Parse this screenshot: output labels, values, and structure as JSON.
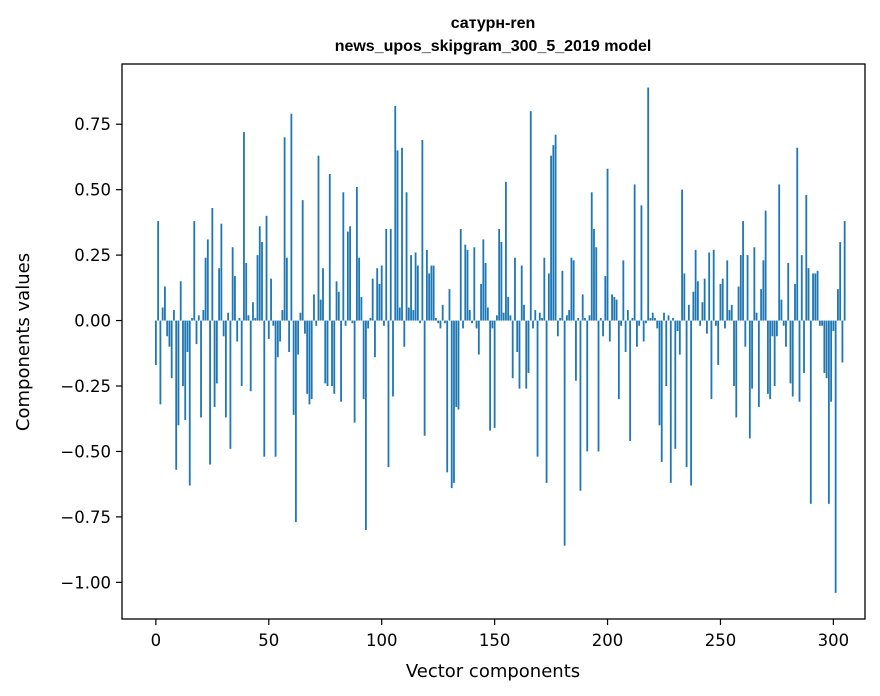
{
  "chart_data": {
    "type": "bar",
    "title_line1": "сатурн-ren",
    "title_line2": "news_upos_skipgram_300_5_2019 model",
    "xlabel": "Vector components",
    "ylabel": "Components values",
    "xlim": [
      -15,
      314
    ],
    "ylim": [
      -1.14,
      0.98
    ],
    "xticks": [
      0,
      50,
      100,
      150,
      200,
      250,
      300
    ],
    "xtick_labels": [
      "0",
      "50",
      "100",
      "150",
      "200",
      "250",
      "300"
    ],
    "yticks": [
      -1.0,
      -0.75,
      -0.5,
      -0.25,
      0.0,
      0.25,
      0.5,
      0.75
    ],
    "ytick_labels": [
      "−1.00",
      "−0.75",
      "−0.50",
      "−0.25",
      "0.00",
      "0.25",
      "0.50",
      "0.75"
    ],
    "bar_color": "#1f77b4",
    "grid": false,
    "values": [
      -0.17,
      0.38,
      -0.32,
      0.05,
      0.13,
      -0.06,
      -0.1,
      -0.22,
      0.04,
      -0.57,
      -0.4,
      0.15,
      -0.25,
      -0.38,
      -0.12,
      -0.63,
      0.01,
      0.38,
      -0.09,
      0.02,
      -0.37,
      0.04,
      0.24,
      0.31,
      -0.55,
      0.43,
      -0.33,
      -0.24,
      0.2,
      0.37,
      -0.06,
      -0.37,
      0.03,
      -0.49,
      0.28,
      0.17,
      -0.08,
      0.01,
      -0.25,
      0.72,
      0.22,
      0.02,
      -0.27,
      0.07,
      0.01,
      0.25,
      0.36,
      0.3,
      -0.52,
      0.4,
      -0.07,
      0.16,
      -0.02,
      -0.52,
      -0.14,
      -0.08,
      0.04,
      0.7,
      0.24,
      -0.12,
      0.79,
      -0.36,
      -0.77,
      -0.13,
      0.03,
      0.46,
      -0.05,
      -0.28,
      -0.32,
      -0.3,
      0.1,
      -0.02,
      0.63,
      0.08,
      0.2,
      -0.24,
      -0.25,
      0.56,
      -0.25,
      -0.28,
      0.15,
      0.11,
      -0.31,
      0.49,
      -0.02,
      0.34,
      0.36,
      -0.01,
      -0.39,
      0.51,
      0.24,
      0.09,
      -0.3,
      -0.8,
      -0.03,
      0.01,
      0.16,
      -0.14,
      0.2,
      0.14,
      0.21,
      -0.02,
      0.35,
      -0.56,
      0.35,
      -0.29,
      0.82,
      0.65,
      0.05,
      0.66,
      -0.1,
      0.49,
      0.05,
      0.25,
      0.04,
      0.26,
      0.21,
      -0.01,
      0.69,
      -0.44,
      0.27,
      0.18,
      0.21,
      0.21,
      0.01,
      -0.01,
      -0.03,
      0.06,
      -0.01,
      -0.58,
      0.12,
      -0.64,
      -0.62,
      -0.33,
      -0.34,
      0.35,
      -0.03,
      0.29,
      0.27,
      0.04,
      -0.01,
      0.28,
      -0.03,
      -0.13,
      0.14,
      0.31,
      0.22,
      0.05,
      -0.42,
      -0.03,
      -0.41,
      0.02,
      0.35,
      0.3,
      0.03,
      0.53,
      0.09,
      0.02,
      -0.22,
      0.24,
      -0.12,
      -0.26,
      0.21,
      0.06,
      -0.26,
      -0.2,
      0.8,
      -0.03,
      0.04,
      -0.52,
      0.03,
      0.01,
      0.24,
      -0.62,
      0.18,
      0.63,
      0.67,
      0.71,
      -0.06,
      0.01,
      0.19,
      -0.86,
      0.02,
      0.04,
      0.24,
      0.23,
      -0.23,
      0.01,
      -0.65,
      0.1,
      0.01,
      -0.5,
      0.02,
      0.49,
      0.35,
      0.28,
      -0.5,
      0.01,
      -0.06,
      0.17,
      0.58,
      -0.08,
      0.1,
      0.09,
      0.08,
      -0.3,
      -0.02,
      0.23,
      -0.12,
      0.04,
      -0.46,
      0.01,
      0.52,
      -0.1,
      -0.02,
      0.44,
      -0.08,
      -0.01,
      0.89,
      0.01,
      0.03,
      0.01,
      -0.03,
      -0.4,
      -0.54,
      0.03,
      -0.25,
      0.02,
      -0.62,
      0.01,
      -0.49,
      -0.04,
      -0.13,
      0.5,
      0.18,
      -0.56,
      0.06,
      -0.63,
      0.11,
      0.27,
      0.15,
      -0.02,
      0.07,
      0.16,
      -0.05,
      0.26,
      -0.3,
      0.27,
      -0.02,
      -0.17,
      0.14,
      0.16,
      -0.03,
      0.23,
      0.04,
      0.06,
      -0.25,
      -0.37,
      0.13,
      0.25,
      0.38,
      -0.1,
      0.25,
      -0.45,
      -0.26,
      0.28,
      0.03,
      -0.33,
      0.12,
      0.23,
      0.42,
      -0.28,
      -0.3,
      -0.06,
      -0.25,
      -0.06,
      0.52,
      0.08,
      -0.02,
      -0.1,
      0.22,
      -0.24,
      -0.29,
      0.14,
      0.66,
      -0.31,
      0.25,
      -0.2,
      0.48,
      0.2,
      -0.7,
      0.18,
      0.18,
      0.19,
      -0.02,
      -0.02,
      -0.2,
      -0.22,
      -0.7,
      -0.31,
      -0.04,
      -1.04,
      0.12,
      0.3,
      -0.16,
      0.38
    ]
  }
}
